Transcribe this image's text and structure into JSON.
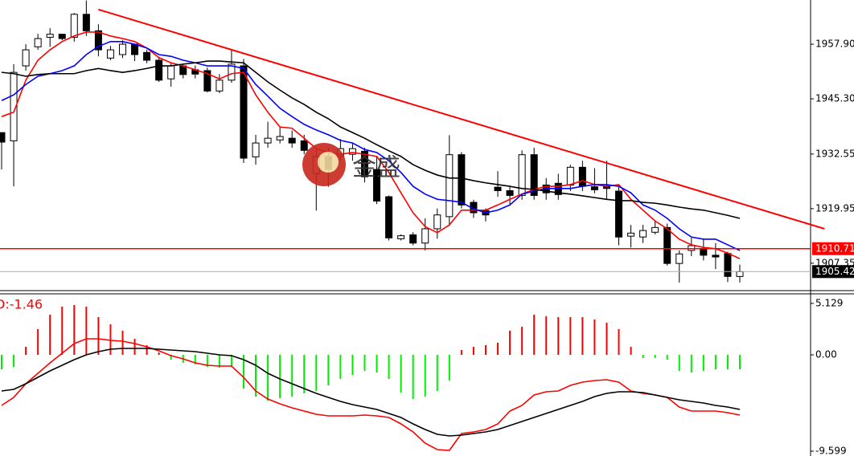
{
  "chart_data": [
    {
      "type": "candlestick",
      "open": [
        1937.5,
        1935.6,
        1952.9,
        1957.3,
        1959.5,
        1960.2,
        1959.5,
        1964.8,
        1961.0,
        1954.7,
        1955.5,
        1957.9,
        1956.0,
        1954.2,
        1949.9,
        1952.9,
        1952.0,
        1951.8,
        1947.1,
        1949.6,
        1952.9,
        1931.9,
        1935.1,
        1935.8,
        1936.2,
        1935.6,
        1928.0,
        1932.0,
        1932.0,
        1932.5,
        1933.2,
        1929.0,
        1922.7,
        1913.0,
        1913.9,
        1912.0,
        1915.3,
        1918.1,
        1932.4,
        1921.4,
        1919.5,
        1924.9,
        1924.1,
        1923.0,
        1932.4,
        1925.4,
        1925.8,
        1925.4,
        1929.5,
        1925.0,
        1925.2,
        1924.0,
        1913.6,
        1913.4,
        1914.5,
        1915.6,
        1907.3,
        1910.3,
        1910.6,
        1909.2,
        1909.6,
        1904.3
      ],
      "high": [
        1937.5,
        1953.3,
        1957.9,
        1960.3,
        1961.6,
        1960.3,
        1965.1,
        1968.0,
        1962.5,
        1957.5,
        1958.8,
        1957.9,
        1956.6,
        1955.0,
        1953.5,
        1953.3,
        1953.0,
        1952.5,
        1951.0,
        1956.6,
        1954.5,
        1937.0,
        1940.0,
        1938.8,
        1938.0,
        1937.0,
        1934.0,
        1934.0,
        1936.0,
        1935.0,
        1934.0,
        1932.0,
        1923.0,
        1914.0,
        1914.5,
        1917.7,
        1920.0,
        1936.9,
        1933.0,
        1922.0,
        1920.0,
        1928.6,
        1925.0,
        1933.4,
        1934.0,
        1927.0,
        1928.0,
        1930.1,
        1931.0,
        1929.3,
        1931.0,
        1925.0,
        1916.2,
        1916.2,
        1917.0,
        1916.5,
        1910.3,
        1913.2,
        1913.0,
        1912.0,
        1910.0,
        1907.0
      ],
      "low": [
        1929.0,
        1925.1,
        1951.8,
        1956.6,
        1957.3,
        1958.8,
        1958.5,
        1959.8,
        1955.1,
        1954.2,
        1954.7,
        1954.0,
        1953.5,
        1949.2,
        1948.1,
        1950.0,
        1950.0,
        1946.8,
        1946.6,
        1949.0,
        1930.5,
        1930.1,
        1934.0,
        1935.0,
        1934.0,
        1932.5,
        1919.5,
        1925.0,
        1931.0,
        1931.0,
        1926.0,
        1921.0,
        1912.6,
        1912.6,
        1911.5,
        1910.3,
        1913.0,
        1916.0,
        1920.0,
        1917.8,
        1917.0,
        1922.7,
        1921.0,
        1922.0,
        1922.0,
        1922.0,
        1922.0,
        1924.0,
        1924.0,
        1923.5,
        1922.0,
        1911.5,
        1911.0,
        1912.0,
        1914.0,
        1906.8,
        1902.9,
        1909.0,
        1908.0,
        1906.0,
        1903.0,
        1902.9
      ],
      "close": [
        1935.3,
        1951.4,
        1956.6,
        1959.2,
        1960.2,
        1959.2,
        1964.8,
        1961.0,
        1956.6,
        1956.6,
        1957.9,
        1955.5,
        1954.2,
        1949.6,
        1952.9,
        1950.9,
        1951.0,
        1947.1,
        1949.6,
        1953.3,
        1931.6,
        1935.1,
        1936.2,
        1936.6,
        1935.1,
        1933.4,
        1932.0,
        1929.0,
        1933.8,
        1933.8,
        1927.3,
        1921.7,
        1913.2,
        1913.7,
        1912.0,
        1915.3,
        1918.5,
        1932.4,
        1920.8,
        1919.0,
        1918.5,
        1924.1,
        1923.0,
        1932.4,
        1923.0,
        1923.6,
        1923.2,
        1929.5,
        1925.1,
        1924.3,
        1924.6,
        1913.4,
        1914.3,
        1914.9,
        1915.6,
        1907.3,
        1909.5,
        1911.4,
        1909.2,
        1908.8,
        1904.3,
        1905.4
      ],
      "series": [
        {
          "color": "#ff0000",
          "values": [
            1941.2,
            1942.2,
            1949.6,
            1954.2,
            1956.6,
            1958.5,
            1959.8,
            1960.7,
            1960.7,
            1959.8,
            1959.2,
            1958.5,
            1957.0,
            1954.8,
            1953.6,
            1952.9,
            1952.0,
            1951.1,
            1949.9,
            1951.1,
            1951.4,
            1946.2,
            1942.2,
            1938.8,
            1938.5,
            1936.2,
            1933.8,
            1932.9,
            1932.5,
            1932.9,
            1932.5,
            1932.0,
            1928.3,
            1923.6,
            1919.0,
            1915.8,
            1914.4,
            1916.2,
            1919.6,
            1919.6,
            1919.6,
            1920.8,
            1922.1,
            1923.3,
            1924.4,
            1925.1,
            1925.1,
            1925.5,
            1926.4,
            1925.5,
            1925.1,
            1925.5,
            1922.1,
            1919.6,
            1917.1,
            1915.3,
            1912.9,
            1911.6,
            1911.0,
            1910.7,
            1909.7,
            1908.4
          ]
        },
        {
          "color": "#0000ff",
          "values": [
            1944.9,
            1946.2,
            1948.6,
            1950.5,
            1951.1,
            1951.8,
            1952.9,
            1955.5,
            1957.4,
            1958.5,
            1958.5,
            1957.9,
            1957.0,
            1955.5,
            1955.1,
            1954.2,
            1953.6,
            1952.9,
            1952.9,
            1952.9,
            1952.3,
            1948.6,
            1945.9,
            1943.1,
            1941.2,
            1939.4,
            1938.1,
            1937.0,
            1935.7,
            1935.1,
            1933.6,
            1932.9,
            1931.0,
            1928.3,
            1925.1,
            1923.3,
            1922.1,
            1921.8,
            1921.4,
            1919.9,
            1919.0,
            1919.6,
            1920.8,
            1923.3,
            1924.0,
            1924.6,
            1924.6,
            1924.6,
            1925.1,
            1925.5,
            1925.5,
            1925.1,
            1923.6,
            1920.8,
            1919.6,
            1917.7,
            1915.3,
            1913.4,
            1912.9,
            1912.9,
            1911.6,
            1910.3
          ]
        },
        {
          "color": "#000000",
          "values": [
            1951.4,
            1951.1,
            1950.5,
            1950.9,
            1951.1,
            1951.1,
            1951.1,
            1951.8,
            1952.3,
            1951.8,
            1951.4,
            1951.8,
            1952.3,
            1952.9,
            1952.9,
            1953.3,
            1953.6,
            1954.0,
            1954.0,
            1953.8,
            1953.6,
            1951.4,
            1949.2,
            1947.3,
            1945.5,
            1944.0,
            1942.2,
            1940.7,
            1938.8,
            1937.5,
            1936.2,
            1934.7,
            1933.3,
            1932.0,
            1930.1,
            1928.8,
            1927.7,
            1927.0,
            1927.0,
            1926.4,
            1925.9,
            1925.5,
            1925.1,
            1924.6,
            1924.4,
            1924.0,
            1923.6,
            1923.3,
            1922.9,
            1922.5,
            1922.1,
            1921.8,
            1921.8,
            1921.4,
            1921.2,
            1920.8,
            1920.3,
            1919.9,
            1919.6,
            1919.0,
            1918.4,
            1917.7
          ]
        }
      ],
      "trendline": {
        "x": [
          8,
          68
        ],
        "values": [
          1965.9,
          1915.3
        ],
        "color": "#ff0000"
      },
      "level": {
        "value": 1910.71,
        "color": "#ff0000"
      },
      "last_price": 1905.42,
      "ylim": [
        1901.4,
        1968.1
      ],
      "yticks": [
        {
          "value": 1957.9,
          "label": "1957.90"
        },
        {
          "value": 1945.3,
          "label": "1945.30"
        },
        1932.55,
        1919.95,
        1907.35
      ],
      "watermark": "金盛"
    },
    {
      "type": "macd",
      "label": "D:-1.46",
      "histogram": [
        -1.44,
        -1.2,
        0.8,
        2.56,
        4.0,
        4.8,
        4.96,
        4.8,
        3.76,
        3.04,
        2.4,
        1.6,
        0.96,
        0.24,
        -0.48,
        -0.8,
        -0.96,
        -1.2,
        -1.28,
        -1.2,
        -3.36,
        -4.16,
        -4.56,
        -4.32,
        -4.16,
        -3.84,
        -3.6,
        -3.04,
        -2.4,
        -2.0,
        -1.6,
        -1.76,
        -2.4,
        -3.76,
        -4.4,
        -4.16,
        -3.6,
        -2.56,
        0.48,
        0.8,
        0.96,
        1.2,
        2.4,
        2.8,
        4.0,
        3.84,
        3.76,
        3.76,
        3.76,
        3.52,
        3.2,
        2.56,
        0.8,
        -0.32,
        -0.32,
        -0.48,
        -1.6,
        -1.76,
        -1.6,
        -1.44,
        -1.44,
        -1.44
      ],
      "histogram_colors": [
        "#ff0000",
        "#00ee00"
      ],
      "series": [
        {
          "color": "#ff0000",
          "values": [
            -5.04,
            -4.24,
            -2.88,
            -1.84,
            -0.8,
            0.16,
            1.12,
            1.6,
            1.6,
            1.44,
            1.36,
            1.12,
            0.8,
            0.4,
            -0.08,
            -0.4,
            -0.8,
            -1.04,
            -1.12,
            -1.12,
            -2.24,
            -3.6,
            -4.4,
            -4.88,
            -5.28,
            -5.6,
            -5.92,
            -6.08,
            -6.08,
            -6.08,
            -6.0,
            -6.08,
            -6.24,
            -6.88,
            -7.68,
            -8.8,
            -9.44,
            -9.52,
            -7.84,
            -7.68,
            -7.44,
            -6.88,
            -5.6,
            -5.04,
            -4.0,
            -3.68,
            -3.6,
            -3.04,
            -2.72,
            -2.56,
            -2.48,
            -2.72,
            -3.6,
            -3.84,
            -4.0,
            -4.24,
            -5.2,
            -5.6,
            -5.6,
            -5.6,
            -5.76,
            -6.0
          ]
        },
        {
          "color": "#000000",
          "values": [
            -3.6,
            -3.44,
            -2.88,
            -2.24,
            -1.6,
            -1.04,
            -0.48,
            0,
            0.32,
            0.56,
            0.64,
            0.64,
            0.64,
            0.56,
            0.48,
            0.4,
            0.32,
            0.16,
            0,
            -0.08,
            -0.48,
            -1.04,
            -1.84,
            -2.4,
            -2.88,
            -3.36,
            -3.84,
            -4.24,
            -4.64,
            -4.96,
            -5.2,
            -5.44,
            -5.84,
            -6.24,
            -6.88,
            -7.44,
            -7.92,
            -8.08,
            -8.0,
            -7.84,
            -7.68,
            -7.44,
            -7.04,
            -6.64,
            -6.24,
            -5.84,
            -5.44,
            -5.04,
            -4.64,
            -4.16,
            -3.84,
            -3.68,
            -3.68,
            -3.76,
            -4.0,
            -4.24,
            -4.48,
            -4.64,
            -4.8,
            -5.04,
            -5.2,
            -5.44
          ]
        }
      ],
      "ylim": [
        -10.08,
        6.08
      ],
      "yticks": [
        5.129,
        {
          "value": 0,
          "label": "0.00"
        },
        -9.599
      ]
    }
  ]
}
